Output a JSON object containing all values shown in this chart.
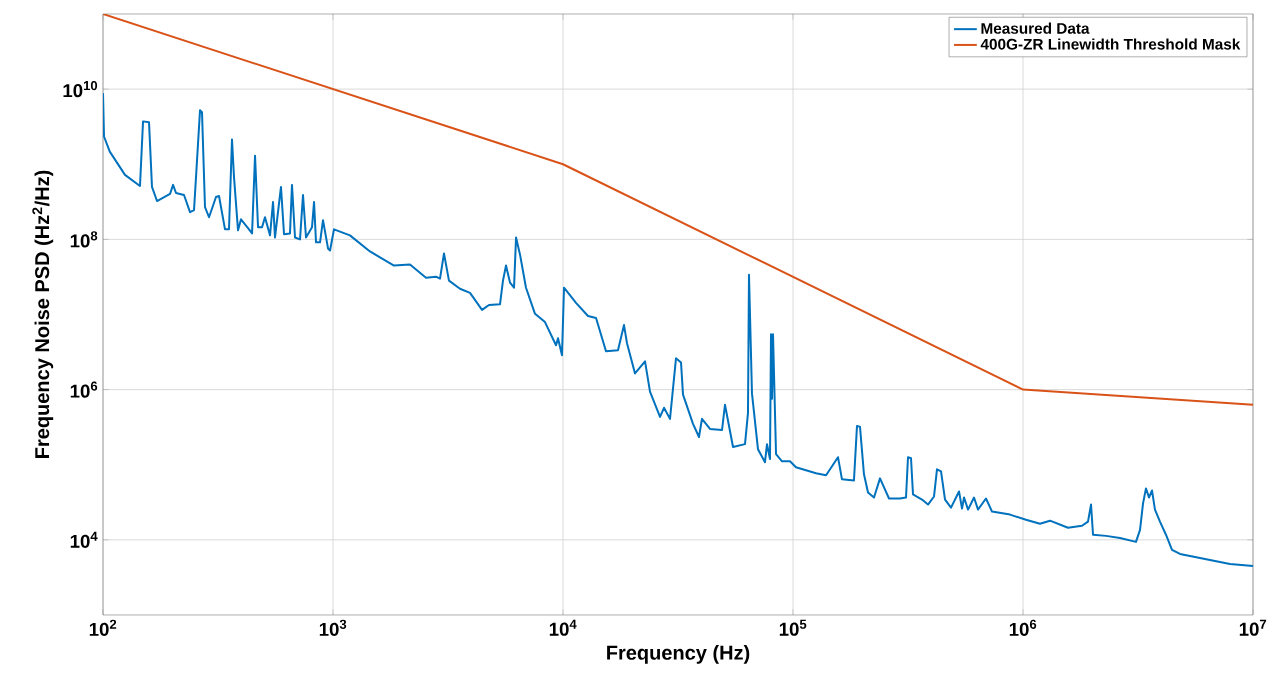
{
  "chart_data": {
    "type": "line",
    "xlabel": "Frequency (Hz)",
    "ylabel": "Frequency Noise PSD (Hz$^{2}$/Hz)",
    "log": "xy",
    "grid": true,
    "legend": "top right",
    "line_style": "solid",
    "xlim": [
      100,
      10000000
    ],
    "ylim": [
      1000,
      100000000000
    ],
    "xticks": [
      {
        "value": 100,
        "label": "10$^{2}$"
      },
      {
        "value": 1000,
        "label": "10$^{3}$"
      },
      {
        "value": 10000,
        "label": "10$^{4}$"
      },
      {
        "value": 100000,
        "label": "10$^{5}$"
      },
      {
        "value": 1000000,
        "label": "10$^{6}$"
      },
      {
        "value": 10000000,
        "label": "10$^{7}$"
      }
    ],
    "yticks": [
      {
        "value": 10000,
        "label": "10$^{4}$"
      },
      {
        "value": 1000000,
        "label": "10$^{6}$"
      },
      {
        "value": 100000000,
        "label": "10$^{8}$"
      },
      {
        "value": 10000000000,
        "label": "10$^{10}$"
      }
    ],
    "series": [
      {
        "name": "Measured Data",
        "color": "#0072bd",
        "x": [
          100,
          101,
          107,
          124.6,
          144.8,
          149.3,
          158.5,
          163.3,
          171.7,
          195.6,
          201.6,
          207.7,
          225,
          238.9,
          248.7,
          264.1,
          269.4,
          277.6,
          289,
          309.9,
          319.4,
          339.2,
          353,
          363.8,
          371.1,
          386.4,
          398.1,
          431.4,
          444.6,
          458.1,
          472.1,
          491.4,
          506.1,
          532.3,
          548.5,
          559.5,
          594,
          612.4,
          650.1,
          663.3,
          683.6,
          718.7,
          740.6,
          763.2,
          810.3,
          827,
          843.7,
          878.1,
          904.7,
          951.2,
          970.5,
          1010,
          1185,
          1448,
          1842,
          2161,
          2537,
          2804,
          2919,
          3038,
          3193,
          3566,
          3942,
          4445,
          4767,
          5323,
          5483,
          5652,
          5884,
          6124,
          6249,
          6501,
          6904,
          7556,
          8350,
          9324,
          9512,
          9900,
          10100,
          11390,
          12840,
          13920,
          15380,
          17340,
          18420,
          18980,
          20560,
          22730,
          23890,
          26410,
          27490,
          29190,
          30990,
          32590,
          33250,
          36750,
          39020,
          40200,
          43560,
          49140,
          50610,
          54850,
          61850,
          63720,
          64360,
          66330,
          70420,
          75540,
          77100,
          79430,
          80230,
          81040,
          81860,
          84370,
          89600,
          97050,
          103000,
          125900,
          139200,
          156900,
          163300,
          184100,
          189800,
          195600,
          203500,
          211900,
          225000,
          238900,
          261500,
          291900,
          310000,
          316200,
          325900,
          332500,
          363800,
          386400,
          410300,
          422700,
          440100,
          458100,
          486400,
          527000,
          543100,
          554100,
          576900,
          612400,
          637400,
          690300,
          733300,
          878100,
          1030000,
          1185000,
          1310000,
          1569000,
          1805000,
          1917000,
          1976000,
          2016000,
          2296000,
          2641000,
          3099000,
          3227000,
          3325000,
          3425000,
          3530000,
          3638000,
          3748000,
          3941000,
          4184000,
          4445000,
          4815000,
          5323000,
          6501000,
          7943000,
          10000000
        ],
        "values": [
          8840000000,
          2340000000,
          1470000000,
          723000000,
          514000000,
          3720000000,
          3610000000,
          499000000,
          324000000,
          402000000,
          531000000,
          414000000,
          390000000,
          230000000,
          245000000,
          5220000000,
          4910000000,
          269000000,
          197000000,
          366000000,
          378000000,
          136000000,
          136000000,
          2130000000,
          679000000,
          132000000,
          185000000,
          136000000,
          120000000,
          1300000000,
          145000000,
          145000000,
          197000000,
          113000000,
          314000000,
          106000000,
          499000000,
          117000000,
          120000000,
          531000000,
          106000000,
          100000000,
          390000000,
          106000000,
          145000000,
          314000000,
          91200000,
          91200000,
          180000000,
          75700000,
          71100000,
          136000000,
          113000000,
          69000000,
          44800000,
          46200000,
          30900000,
          31900000,
          30000000,
          64900000,
          28200000,
          22000000,
          19400000,
          11500000,
          13400000,
          13700000,
          28200000,
          44800000,
          26500000,
          22700000,
          106000000,
          63000000,
          22700000,
          10200000,
          7930000,
          3900000,
          4840000,
          2860000,
          22700000,
          14300000,
          9550000,
          8970000,
          3240000,
          3340000,
          7230000,
          4140000,
          1640000,
          2380000,
          940000,
          434000,
          573000,
          408000,
          2610000,
          2300000,
          857000,
          350000,
          234000,
          408000,
          300000,
          290000,
          629000,
          172000,
          188000,
          491000,
          33900000,
          884000,
          161000,
          108000,
          188000,
          119000,
          5470000,
          757000,
          5470000,
          138000,
          111000,
          111000,
          92500,
          76900,
          72300,
          126000,
          63900,
          61900,
          329000,
          319000,
          74600,
          42700,
          36600,
          65900,
          35500,
          35500,
          36600,
          126000,
          122000,
          40200,
          34400,
          29500,
          37800,
          87000,
          81800,
          34400,
          26900,
          44100,
          26100,
          36600,
          25300,
          36600,
          25300,
          35500,
          23800,
          21700,
          18500,
          16400,
          18000,
          14500,
          15400,
          17500,
          29500,
          11700,
          11300,
          10600,
          9400,
          13600,
          30400,
          48400,
          36600,
          45500,
          25300,
          17500,
          11700,
          7340,
          6490,
          6100,
          5390,
          4760,
          4480
        ]
      },
      {
        "name": "400G-ZR Linewidth Threshold Mask",
        "color": "#d95319",
        "x": [
          100,
          10000,
          1000000,
          10000000
        ],
        "values": [
          100000000000,
          1000000000,
          1000000,
          630000
        ]
      }
    ]
  }
}
